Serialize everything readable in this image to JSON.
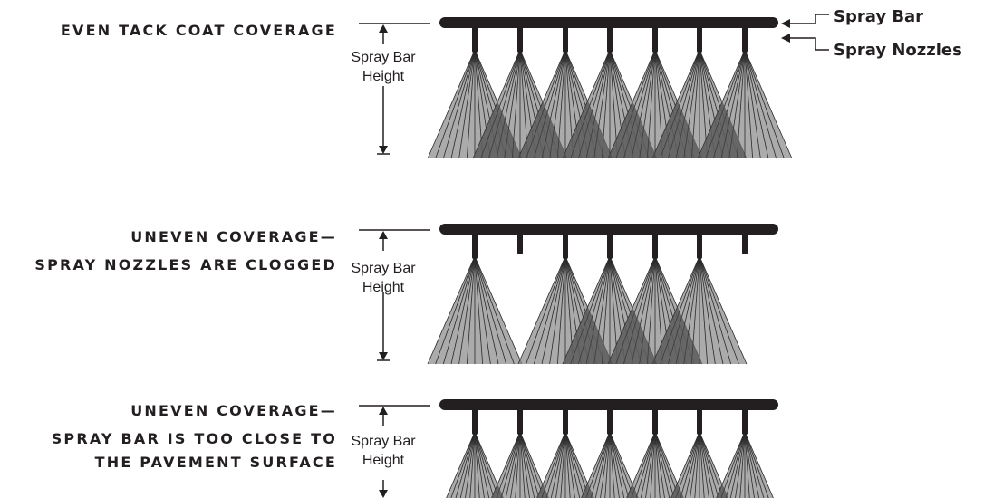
{
  "callouts": {
    "spray_bar": "Spray Bar",
    "spray_nozzles": "Spray Nozzles"
  },
  "height_label": {
    "line1": "Spray Bar",
    "line2": "Height"
  },
  "panels": [
    {
      "caption_lines": [
        "EVEN TACK COAT COVERAGE"
      ],
      "nozzles": [
        "active",
        "active",
        "active",
        "active",
        "active",
        "active",
        "active"
      ],
      "condition": "normal"
    },
    {
      "caption_lines": [
        "UNEVEN COVERAGE—",
        "SPRAY NOZZLES ARE CLOGGED"
      ],
      "nozzles": [
        "active",
        "clogged",
        "active",
        "active",
        "active",
        "active",
        "clogged"
      ],
      "condition": "clogged"
    },
    {
      "caption_lines": [
        "UNEVEN COVERAGE—",
        "SPRAY BAR IS TOO CLOSE TO",
        "THE PAVEMENT SURFACE"
      ],
      "nozzles": [
        "active",
        "active",
        "active",
        "active",
        "active",
        "active",
        "active"
      ],
      "condition": "too-close"
    }
  ],
  "colors": {
    "ink": "#231f20",
    "spray": "#8a8a8a",
    "overlap": "#4a4a4a",
    "fan_line": "#2a2a2a"
  }
}
